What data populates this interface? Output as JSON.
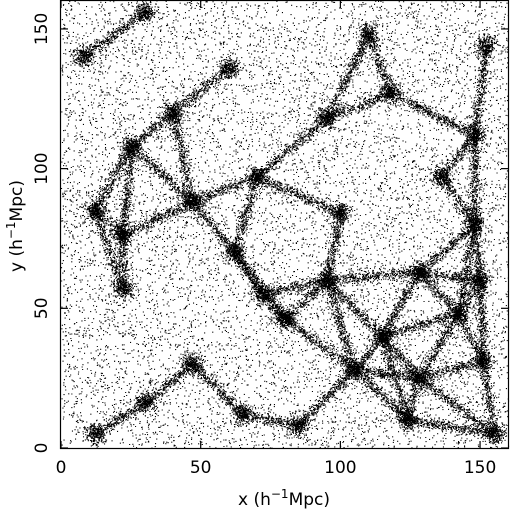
{
  "chart_data": {
    "type": "scatter",
    "title": "",
    "xlabel": {
      "pre": "x (h",
      "sup": "−1",
      "post": "Mpc)"
    },
    "ylabel": {
      "pre": "y (h",
      "sup": "−1",
      "post": "Mpc)"
    },
    "xlim": [
      0,
      160
    ],
    "ylim": [
      0,
      160
    ],
    "x_ticks": [
      0,
      50,
      100,
      150
    ],
    "y_ticks": [
      0,
      50,
      100,
      150
    ],
    "grid": false,
    "legend": "none",
    "series": [
      {
        "marker": "dot",
        "color": "#000000",
        "description_points": "dense particle distribution forming a cosmic web of filaments, nodes and voids",
        "clusters": [
          [
            30,
            156
          ],
          [
            60,
            136
          ],
          [
            118,
            127
          ],
          [
            152,
            144
          ],
          [
            110,
            148
          ],
          [
            8,
            140
          ],
          [
            95,
            118
          ],
          [
            25,
            108
          ],
          [
            148,
            112
          ],
          [
            70,
            97
          ],
          [
            136,
            97
          ],
          [
            47,
            88
          ],
          [
            12,
            85
          ],
          [
            100,
            84
          ],
          [
            148,
            80
          ],
          [
            22,
            76
          ],
          [
            62,
            70
          ],
          [
            128,
            63
          ],
          [
            95,
            60
          ],
          [
            150,
            60
          ],
          [
            22,
            57
          ],
          [
            80,
            46
          ],
          [
            115,
            40
          ],
          [
            142,
            48
          ],
          [
            47,
            30
          ],
          [
            105,
            28
          ],
          [
            128,
            25
          ],
          [
            151,
            31
          ],
          [
            30,
            16
          ],
          [
            65,
            12
          ],
          [
            124,
            10
          ],
          [
            85,
            8
          ],
          [
            12,
            5
          ],
          [
            155,
            5
          ],
          [
            72,
            55
          ],
          [
            40,
            120
          ]
        ]
      }
    ]
  }
}
